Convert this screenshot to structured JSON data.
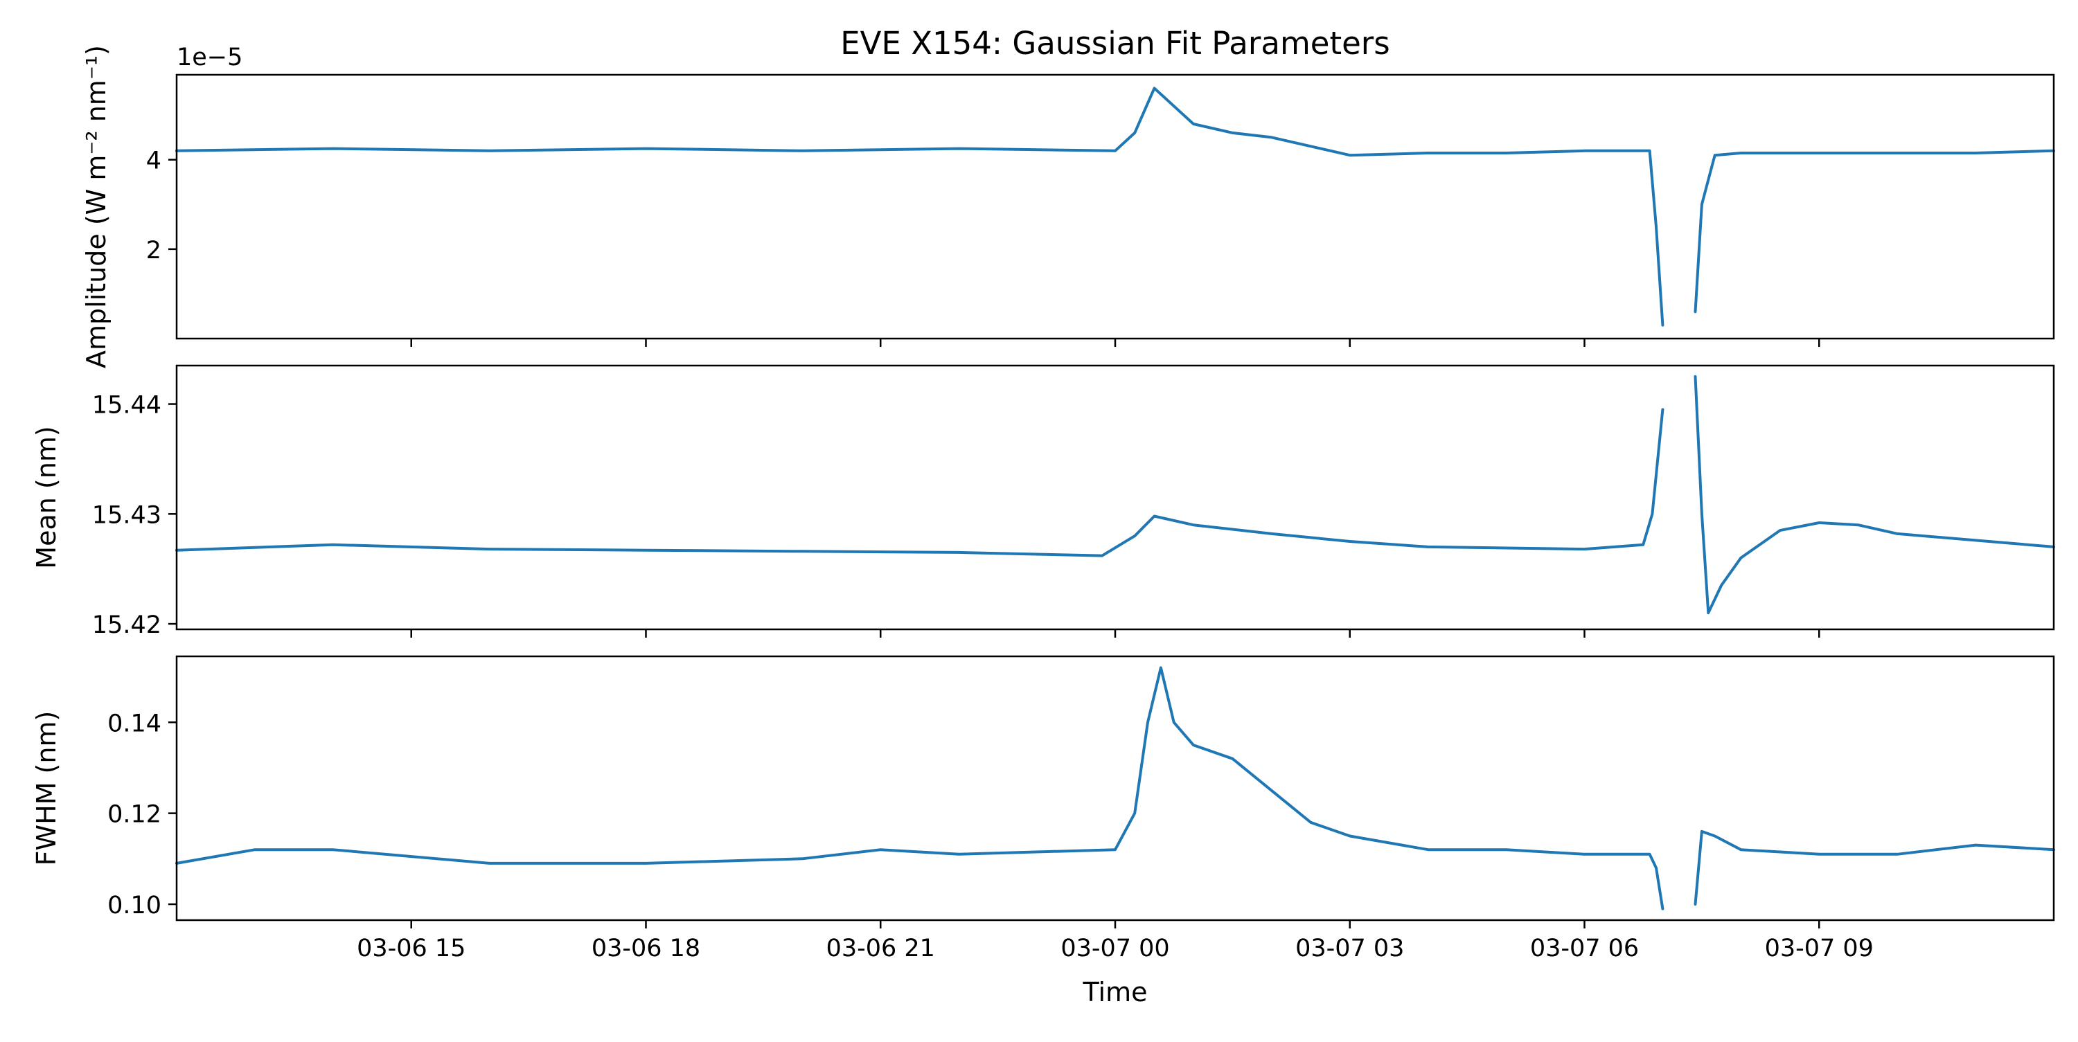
{
  "chart_data": {
    "type": "line",
    "title": "EVE X154: Gaussian Fit Parameters",
    "xlabel": "Time",
    "x_axis": {
      "range": [
        "2025-03-06 12:00",
        "2025-03-07 12:00"
      ],
      "ticks": [
        {
          "time": "2025-03-06 15:00",
          "label": "03-06 15"
        },
        {
          "time": "2025-03-06 18:00",
          "label": "03-06 18"
        },
        {
          "time": "2025-03-06 21:00",
          "label": "03-06 21"
        },
        {
          "time": "2025-03-07 00:00",
          "label": "03-07 00"
        },
        {
          "time": "2025-03-07 03:00",
          "label": "03-07 03"
        },
        {
          "time": "2025-03-07 06:00",
          "label": "03-07 06"
        },
        {
          "time": "2025-03-07 09:00",
          "label": "03-07 09"
        }
      ]
    },
    "panels": [
      {
        "ylabel": "Amplitude (W m⁻² nm⁻¹)",
        "offset_text": "1e−5",
        "ylim": [
          0.0,
          5.9
        ],
        "yticks": [
          {
            "v": 2,
            "label": "2"
          },
          {
            "v": 4,
            "label": "4"
          }
        ],
        "series": [
          {
            "x": [
              "2025-03-06 12:00",
              "2025-03-06 14:00",
              "2025-03-06 16:00",
              "2025-03-06 18:00",
              "2025-03-06 20:00",
              "2025-03-06 22:00",
              "2025-03-07 00:00",
              "2025-03-07 00:15",
              "2025-03-07 00:30",
              "2025-03-07 00:45",
              "2025-03-07 01:00",
              "2025-03-07 01:30",
              "2025-03-07 02:00",
              "2025-03-07 02:30",
              "2025-03-07 03:00",
              "2025-03-07 04:00",
              "2025-03-07 05:00",
              "2025-03-07 06:00",
              "2025-03-07 06:50",
              "2025-03-07 06:55",
              "2025-03-07 07:00",
              null,
              "2025-03-07 07:25",
              "2025-03-07 07:30",
              "2025-03-07 07:40",
              "2025-03-07 08:00",
              "2025-03-07 09:00",
              "2025-03-07 10:00",
              "2025-03-07 11:00",
              "2025-03-07 12:00"
            ],
            "y": [
              4.2,
              4.25,
              4.2,
              4.25,
              4.2,
              4.25,
              4.2,
              4.6,
              5.6,
              5.2,
              4.8,
              4.6,
              4.5,
              4.3,
              4.1,
              4.15,
              4.15,
              4.2,
              4.2,
              2.5,
              0.3,
              null,
              0.6,
              3.0,
              4.1,
              4.15,
              4.15,
              4.15,
              4.15,
              4.2
            ]
          }
        ]
      },
      {
        "ylabel": "Mean (nm)",
        "offset_text": "",
        "ylim": [
          15.4195,
          15.4435
        ],
        "yticks": [
          {
            "v": 15.42,
            "label": "15.42"
          },
          {
            "v": 15.43,
            "label": "15.43"
          },
          {
            "v": 15.44,
            "label": "15.44"
          }
        ],
        "series": [
          {
            "x": [
              "2025-03-06 12:00",
              "2025-03-06 14:00",
              "2025-03-06 16:00",
              "2025-03-06 18:00",
              "2025-03-06 20:00",
              "2025-03-06 22:00",
              "2025-03-06 23:50",
              "2025-03-07 00:15",
              "2025-03-07 00:30",
              "2025-03-07 01:00",
              "2025-03-07 02:00",
              "2025-03-07 03:00",
              "2025-03-07 04:00",
              "2025-03-07 05:00",
              "2025-03-07 06:00",
              "2025-03-07 06:45",
              "2025-03-07 06:52",
              "2025-03-07 07:00",
              null,
              "2025-03-07 07:25",
              "2025-03-07 07:30",
              "2025-03-07 07:35",
              "2025-03-07 07:45",
              "2025-03-07 08:00",
              "2025-03-07 08:30",
              "2025-03-07 09:00",
              "2025-03-07 09:30",
              "2025-03-07 10:00",
              "2025-03-07 11:00",
              "2025-03-07 12:00"
            ],
            "y": [
              15.4267,
              15.4272,
              15.4268,
              15.4267,
              15.4266,
              15.4265,
              15.4262,
              15.428,
              15.4298,
              15.429,
              15.4282,
              15.4275,
              15.427,
              15.4269,
              15.4268,
              15.4272,
              15.43,
              15.4395,
              null,
              15.4425,
              15.43,
              15.421,
              15.4235,
              15.426,
              15.4285,
              15.4292,
              15.429,
              15.4282,
              15.4276,
              15.427
            ]
          }
        ]
      },
      {
        "ylabel": "FWHM (nm)",
        "offset_text": "",
        "ylim": [
          0.0965,
          0.1545
        ],
        "yticks": [
          {
            "v": 0.1,
            "label": "0.10"
          },
          {
            "v": 0.12,
            "label": "0.12"
          },
          {
            "v": 0.14,
            "label": "0.14"
          }
        ],
        "series": [
          {
            "x": [
              "2025-03-06 12:00",
              "2025-03-06 13:00",
              "2025-03-06 14:00",
              "2025-03-06 16:00",
              "2025-03-06 18:00",
              "2025-03-06 20:00",
              "2025-03-06 21:00",
              "2025-03-06 22:00",
              "2025-03-07 00:00",
              "2025-03-07 00:15",
              "2025-03-07 00:25",
              "2025-03-07 00:35",
              "2025-03-07 00:45",
              "2025-03-07 01:00",
              "2025-03-07 01:30",
              "2025-03-07 02:00",
              "2025-03-07 02:30",
              "2025-03-07 03:00",
              "2025-03-07 04:00",
              "2025-03-07 05:00",
              "2025-03-07 06:00",
              "2025-03-07 06:50",
              "2025-03-07 06:55",
              "2025-03-07 07:00",
              null,
              "2025-03-07 07:25",
              "2025-03-07 07:30",
              "2025-03-07 07:40",
              "2025-03-07 08:00",
              "2025-03-07 09:00",
              "2025-03-07 10:00",
              "2025-03-07 11:00",
              "2025-03-07 12:00"
            ],
            "y": [
              0.109,
              0.112,
              0.112,
              0.109,
              0.109,
              0.11,
              0.112,
              0.111,
              0.112,
              0.12,
              0.14,
              0.152,
              0.14,
              0.135,
              0.132,
              0.125,
              0.118,
              0.115,
              0.112,
              0.112,
              0.111,
              0.111,
              0.108,
              0.099,
              null,
              0.1,
              0.116,
              0.115,
              0.112,
              0.111,
              0.111,
              0.113,
              0.112
            ]
          }
        ]
      }
    ],
    "line_color": "#1f77b4"
  }
}
